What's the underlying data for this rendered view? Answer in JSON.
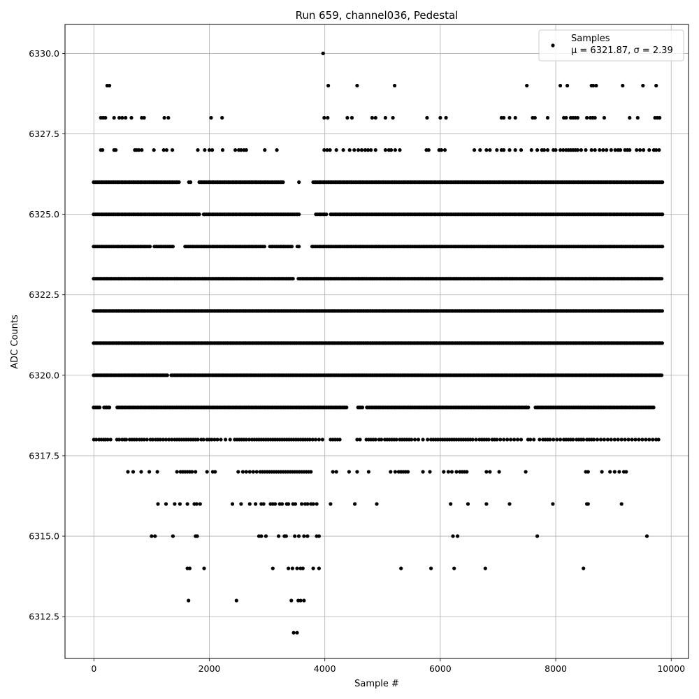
{
  "chart_data": {
    "type": "scatter",
    "title": "Run 659, channel036, Pedestal",
    "xlabel": "Sample #",
    "ylabel": "ADC Counts",
    "xlim": [
      -500,
      10300
    ],
    "ylim": [
      6311.2,
      6330.9
    ],
    "xticks": [
      0,
      2000,
      4000,
      6000,
      8000,
      10000
    ],
    "xtick_labels": [
      "0",
      "2000",
      "4000",
      "6000",
      "8000",
      "10000"
    ],
    "yticks": [
      6312.5,
      6315.0,
      6317.5,
      6320.0,
      6322.5,
      6325.0,
      6327.5,
      6330.0
    ],
    "ytick_labels": [
      "6312.5",
      "6315.0",
      "6317.5",
      "6320.0",
      "6322.5",
      "6325.0",
      "6327.5",
      "6330.0"
    ],
    "grid": true,
    "legend_position": "top-right",
    "marker_color": "#000000",
    "series": [
      {
        "name": "Samples",
        "label_stats": "μ = 6321.87, σ = 2.39",
        "levels": [
          {
            "y": 6318,
            "x": [
              0,
              40,
              90,
              130,
              170,
              200,
              240,
              290,
              400,
              440,
              490,
              530,
              560,
              620,
              660,
              700,
              740,
              790,
              830,
              870,
              920,
              980,
              1020,
              1070,
              1110,
              1150,
              1200,
              1250,
              1300,
              1350,
              1400,
              1440,
              1480,
              1520,
              1560,
              1600,
              1640,
              1680,
              1720,
              1760,
              1800,
              1860,
              1900,
              1960,
              2000,
              2040,
              2090,
              2140,
              2200,
              2280,
              2360,
              2440,
              2480,
              2520,
              2560,
              2600,
              2640,
              2690,
              2740,
              2780,
              2820,
              2860,
              2900,
              2940,
              2980,
              3020,
              3060,
              3100,
              3140,
              3180,
              3220,
              3260,
              3300,
              3340,
              3380,
              3420,
              3460,
              3500,
              3540,
              3580,
              3620,
              3660,
              3700,
              3740,
              3790,
              3840,
              3900,
              3960,
              4100,
              4140,
              4180,
              4220,
              4260,
              4560,
              4610,
              4720,
              4760,
              4800,
              4840,
              4880,
              4940,
              4980,
              5040,
              5080,
              5120,
              5160,
              5200,
              5240,
              5300,
              5340,
              5380,
              5420,
              5460,
              5500,
              5560,
              5620,
              5700,
              5780,
              5840,
              5880,
              5920,
              5960,
              6000,
              6040,
              6080,
              6120,
              6160,
              6200,
              6240,
              6280,
              6320,
              6360,
              6400,
              6440,
              6480,
              6520,
              6560,
              6620,
              6680,
              6720,
              6760,
              6800,
              6840,
              6900,
              6940,
              6980,
              7040,
              7100,
              7160,
              7220,
              7280,
              7340,
              7400,
              7520,
              7560,
              7620,
              7720,
              7780,
              7820,
              7860,
              7900,
              7960,
              8020,
              8080,
              8140,
              8180,
              8220,
              8260,
              8300,
              8360,
              8400,
              8440,
              8480,
              8540,
              8580,
              8620,
              8660,
              8720,
              8780,
              8840,
              8900,
              8960,
              9020,
              9080,
              9140,
              9200,
              9260,
              9320,
              9380,
              9440,
              9500,
              9560,
              9620,
              9680,
              9740,
              9780
            ]
          },
          {
            "y": 6317,
            "x": [
              590,
              680,
              820,
              960,
              1100,
              1440,
              1500,
              1540,
              1580,
              1620,
              1660,
              1700,
              1760,
              1960,
              2060,
              2100,
              2500,
              2580,
              2640,
              2700,
              2760,
              2820,
              2880,
              2920,
              2960,
              3000,
              3040,
              3080,
              3120,
              3160,
              3200,
              3240,
              3280,
              3320,
              3360,
              3400,
              3440,
              3480,
              3520,
              3560,
              3600,
              3640,
              3680,
              3720,
              3760,
              4140,
              4200,
              4420,
              4560,
              4760,
              5140,
              5220,
              5280,
              5320,
              5360,
              5400,
              5440,
              5700,
              5820,
              6060,
              6140,
              6200,
              6280,
              6340,
              6380,
              6420,
              6460,
              6800,
              6860,
              7020,
              7480,
              8520,
              8560,
              8800,
              8940,
              9020,
              9100,
              9180,
              9220
            ]
          },
          {
            "y": 6316,
            "x": [
              1110,
              1250,
              1400,
              1490,
              1620,
              1740,
              1780,
              1840,
              2400,
              2550,
              2700,
              2800,
              2900,
              2940,
              3060,
              3100,
              3140,
              3220,
              3260,
              3340,
              3370,
              3450,
              3490,
              3600,
              3660,
              3700,
              3760,
              3800,
              3860,
              4100,
              4520,
              4900,
              6180,
              6480,
              6800,
              7200,
              7950,
              8540,
              8560,
              9140
            ]
          },
          {
            "y": 6315,
            "x": [
              1000,
              1060,
              1370,
              1760,
              1790,
              2860,
              2900,
              2980,
              3200,
              3300,
              3330,
              3480,
              3550,
              3640,
              3700,
              3860,
              3900,
              6220,
              6300,
              7680,
              9580
            ]
          },
          {
            "y": 6314,
            "x": [
              1620,
              1660,
              1910,
              3100,
              3370,
              3440,
              3520,
              3580,
              3620,
              3800,
              3900,
              5320,
              5840,
              6240,
              6780,
              8480
            ]
          },
          {
            "y": 6313,
            "x": [
              1640,
              2470,
              3420,
              3540,
              3580,
              3640
            ]
          },
          {
            "y": 6312,
            "x": [
              3460,
              3520
            ]
          },
          {
            "y": 6327,
            "x": [
              120,
              150,
              350,
              380,
              710,
              740,
              780,
              830,
              1040,
              1210,
              1260,
              1360,
              1800,
              1920,
              2000,
              2050,
              2230,
              2450,
              2510,
              2550,
              2600,
              2640,
              2960,
              3170,
              3990,
              4040,
              4090,
              4200,
              4320,
              4430,
              4510,
              4580,
              4640,
              4700,
              4750,
              4800,
              4880,
              5050,
              5110,
              5150,
              5220,
              5300,
              5760,
              5800,
              5980,
              6020,
              6080,
              6590,
              6690,
              6800,
              6860,
              6980,
              7060,
              7100,
              7200,
              7300,
              7400,
              7580,
              7680,
              7760,
              7800,
              7860,
              7960,
              8000,
              8080,
              8130,
              8180,
              8220,
              8260,
              8300,
              8340,
              8380,
              8440,
              8520,
              8620,
              8680,
              8760,
              8820,
              8880,
              8960,
              9030,
              9080,
              9120,
              9200,
              9240,
              9280,
              9400,
              9460,
              9520,
              9620,
              9700,
              9740,
              9790
            ]
          },
          {
            "y": 6328,
            "x": [
              120,
              160,
              200,
              350,
              440,
              490,
              550,
              650,
              830,
              870,
              1220,
              1290,
              2030,
              2220,
              3990,
              4050,
              4390,
              4470,
              4820,
              4880,
              5050,
              5180,
              5770,
              6000,
              6100,
              7060,
              7100,
              7200,
              7300,
              7600,
              7640,
              7860,
              8140,
              8180,
              8260,
              8300,
              8340,
              8380,
              8540,
              8600,
              8640,
              8680,
              8840,
              9280,
              9420,
              9720,
              9760,
              9800
            ]
          },
          {
            "y": 6329,
            "x": [
              230,
              270,
              4060,
              4560,
              5210,
              7500,
              8080,
              8200,
              8620,
              8650,
              8700,
              9160,
              9510,
              9740
            ]
          },
          {
            "y": 6330,
            "x": [
              3970
            ]
          }
        ],
        "dense_levels": [
          {
            "y": 6326,
            "x_start": 0,
            "x_end": 9850,
            "step": 25,
            "gaps": [
              [
                1500,
                1640
              ],
              [
                1700,
                1820
              ],
              [
                3300,
                3540
              ],
              [
                3560,
                3680
              ],
              [
                3700,
                3790
              ]
            ]
          },
          {
            "y": 6325,
            "x_start": 0,
            "x_end": 9850,
            "step": 25,
            "gaps": [
              [
                1850,
                1880
              ],
              [
                3560,
                3840
              ],
              [
                4040,
                4090
              ]
            ]
          },
          {
            "y": 6324,
            "x_start": 0,
            "x_end": 9850,
            "step": 25,
            "gaps": [
              [
                1000,
                1040
              ],
              [
                1380,
                1560
              ],
              [
                2960,
                3030
              ],
              [
                3440,
                3520
              ],
              [
                3560,
                3750
              ]
            ]
          },
          {
            "y": 6323,
            "x_start": 0,
            "x_end": 9850,
            "step": 22,
            "gaps": [
              [
                3460,
                3520
              ]
            ]
          },
          {
            "y": 6322,
            "x_start": 0,
            "x_end": 9850,
            "step": 20,
            "gaps": []
          },
          {
            "y": 6321,
            "x_start": 0,
            "x_end": 9850,
            "step": 20,
            "gaps": []
          },
          {
            "y": 6320,
            "x_start": 0,
            "x_end": 9850,
            "step": 22,
            "gaps": [
              [
                1280,
                1320
              ]
            ]
          },
          {
            "y": 6319,
            "x_start": 0,
            "x_end": 9700,
            "step": 25,
            "gaps": [
              [
                120,
                170
              ],
              [
                290,
                380
              ],
              [
                4380,
                4560
              ],
              [
                4660,
                4720
              ],
              [
                7540,
                7640
              ]
            ]
          }
        ]
      }
    ]
  }
}
